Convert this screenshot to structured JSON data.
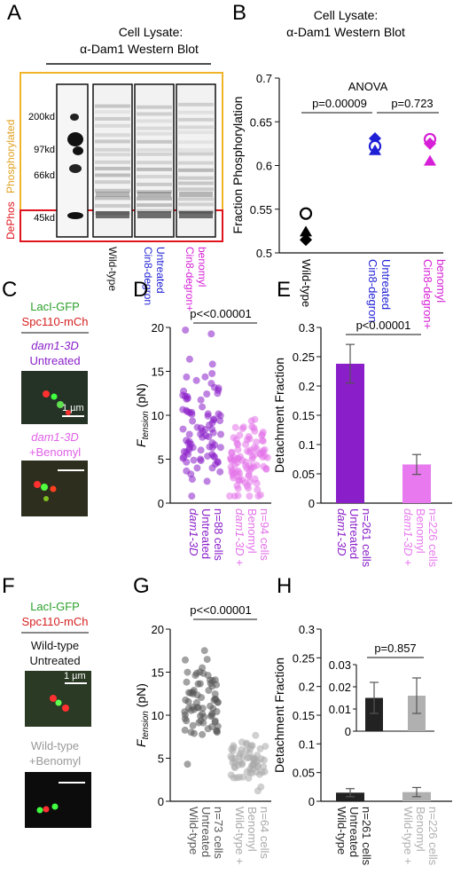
{
  "panels": {
    "A": {
      "letter": "A",
      "title1": "Cell Lysate:",
      "title2": "α-Dam1 Western Blot",
      "ladder": [
        "200kd",
        "97kd",
        "66kd",
        "45kd"
      ],
      "region_phos": "Phosphorylated",
      "region_dephos": "DePhos",
      "lanes": [
        "Wild-type",
        "Cin8-degron Untreated",
        "Cin8-degron+ benomyl"
      ],
      "colors": {
        "phos": "#f0b429",
        "dephos": "#e0141e"
      }
    },
    "C": {
      "letter": "C",
      "legend1": "LacI-GFP",
      "legend2": "Spc110-mCh",
      "cond1a": "dam1-3D",
      "cond1b": "Untreated",
      "scalebar": "1 µm",
      "cond2a": "dam1-3D",
      "cond2b": "+Benomyl"
    },
    "F": {
      "letter": "F",
      "legend1": "LacI-GFP",
      "legend2": "Spc110-mCh",
      "cond1a": "Wild-type",
      "cond1b": "Untreated",
      "scalebar": "1 µm",
      "cond2a": "Wild-type",
      "cond2b": "+Benomyl"
    }
  },
  "chart_data": [
    {
      "panel": "B",
      "type": "scatter",
      "title": "Cell Lysate: α-Dam1 Western Blot",
      "ylabel": "Fraction Phosphorylation",
      "ylim": [
        0.5,
        0.7
      ],
      "yticks": [
        "0.5",
        "0.55",
        "0.6",
        "0.65",
        "0.7"
      ],
      "categories": [
        {
          "l1": "Wild-type",
          "l2": ""
        },
        {
          "l1": "Cin8-degron",
          "l2": "Untreated"
        },
        {
          "l1": "Cin8-degron+",
          "l2": "benomyl"
        }
      ],
      "colors": [
        "#000000",
        "#1f1fd6",
        "#d61fd6"
      ],
      "points": [
        {
          "cat": 0,
          "y": 0.545,
          "marker": "circle"
        },
        {
          "cat": 0,
          "y": 0.524,
          "marker": "triangle"
        },
        {
          "cat": 0,
          "y": 0.515,
          "marker": "diamond"
        },
        {
          "cat": 1,
          "y": 0.631,
          "marker": "diamond"
        },
        {
          "cat": 1,
          "y": 0.622,
          "marker": "circle"
        },
        {
          "cat": 1,
          "y": 0.617,
          "marker": "triangle"
        },
        {
          "cat": 2,
          "y": 0.63,
          "marker": "circle"
        },
        {
          "cat": 2,
          "y": 0.625,
          "marker": "diamond"
        },
        {
          "cat": 2,
          "y": 0.605,
          "marker": "triangle"
        }
      ],
      "annotations": {
        "anova": "ANOVA",
        "p1": "p=0.00009",
        "p2": "p=0.723"
      }
    },
    {
      "panel": "D",
      "type": "scatter",
      "ylabel_main": "F",
      "ylabel_sub": "tension",
      "ylabel_unit": "(pN)",
      "ylim": [
        0,
        20
      ],
      "yticks": [
        "0",
        "5",
        "10",
        "15",
        "20"
      ],
      "groups": [
        {
          "color": "#8a1fc9",
          "l1": "dam1-3D",
          "l2": "Untreated",
          "l3": "n=88 cells",
          "n": 88,
          "mean": 8.5,
          "sd": 3.6
        },
        {
          "color": "#e472ea",
          "l1": "dam1-3D +",
          "l2": "Benomyl",
          "l3": "n=94 cells",
          "n": 94,
          "mean": 4.6,
          "sd": 2.0
        }
      ],
      "pvalue": "p<<0.00001"
    },
    {
      "panel": "E",
      "type": "bar",
      "ylabel": "Detachment Fraction",
      "ylim": [
        0,
        0.3
      ],
      "yticks": [
        "0",
        "0.05",
        "0.1",
        "0.15",
        "0.2",
        "0.25",
        "0.3"
      ],
      "bars": [
        {
          "value": 0.238,
          "err": 0.033,
          "color": "#8a1fc9",
          "l1": "dam1-3D",
          "l2": "Untreated",
          "l3": "n=261 cells"
        },
        {
          "value": 0.066,
          "err": 0.017,
          "color": "#e879ef",
          "l1": "dam1-3D +",
          "l2": "Benomyl",
          "l3": "n=226 cells"
        }
      ],
      "pvalue": "p<0.00001"
    },
    {
      "panel": "G",
      "type": "scatter",
      "ylabel_main": "F",
      "ylabel_sub": "tension",
      "ylabel_unit": "(pN)",
      "ylim": [
        0,
        20
      ],
      "yticks": [
        "0",
        "5",
        "10",
        "15",
        "20"
      ],
      "groups": [
        {
          "color": "#555555",
          "l1": "Wild-type",
          "l2": "Untreated",
          "l3": "n=73 cells",
          "n": 73,
          "mean": 11.2,
          "sd": 2.6
        },
        {
          "color": "#aaaaaa",
          "l1": "Wild-type +",
          "l2": "Benomyl",
          "l3": "n=64 cells",
          "n": 64,
          "mean": 4.8,
          "sd": 1.3
        }
      ],
      "pvalue": "p<<0.00001"
    },
    {
      "panel": "H",
      "type": "bar",
      "ylabel": "Detachment Fraction",
      "ylim": [
        0,
        0.3
      ],
      "yticks": [
        "0",
        "0.05",
        "0.1",
        "0.15",
        "0.2",
        "0.25",
        "0.3"
      ],
      "bars": [
        {
          "value": 0.015,
          "err": 0.007,
          "color": "#222222",
          "l1": "Wild-type",
          "l2": "Untreated",
          "l3": "n=261 cells"
        },
        {
          "value": 0.016,
          "err": 0.008,
          "color": "#b0b0b0",
          "l1": "Wild-type +",
          "l2": "Benomyl",
          "l3": "n=226 cells"
        }
      ],
      "inset": {
        "ylim": [
          0,
          0.03
        ],
        "yticks": [
          "0",
          "0.01",
          "0.02",
          "0.03"
        ],
        "pvalue": "p=0.857"
      }
    }
  ]
}
